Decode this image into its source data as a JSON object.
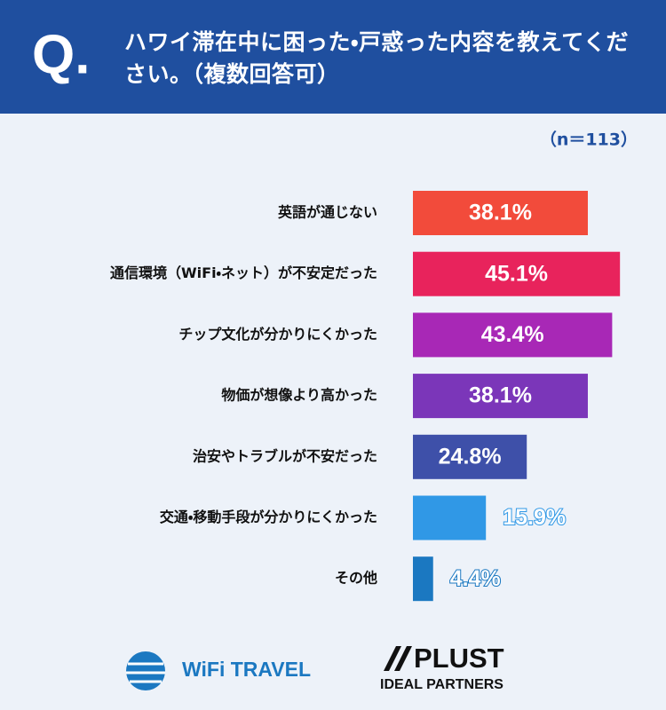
{
  "header": {
    "label": "Q."
  },
  "chart_data": {
    "type": "bar",
    "orientation": "horizontal",
    "title": "ハワイ滞在中に困った・戸惑った内容を教えてください。（複数回答可）",
    "subtitle": "（n＝113）",
    "categories": [
      "英語が通じない",
      "通信環境（WiFi・ネット）が不安定だった",
      "チップ文化が分かりにくかった",
      "物価が想像より高かった",
      "治安やトラブルが不安だった",
      "交通・移動手段が分かりにくかった",
      "その他"
    ],
    "values": [
      38.1,
      45.1,
      43.4,
      38.1,
      24.8,
      15.9,
      4.4
    ],
    "value_labels": [
      "38.1%",
      "45.1%",
      "43.4%",
      "38.1%",
      "24.8%",
      "15.9%",
      "4.4%"
    ],
    "colors": [
      "#f24b3b",
      "#e8235c",
      "#a828b6",
      "#7b36b9",
      "#3e50a9",
      "#3098e6",
      "#1b78c1"
    ]
  },
  "footer": {
    "logos": [
      "WiFi TRAVEL",
      "PLUST",
      "IDEAL PARTNERS"
    ]
  }
}
